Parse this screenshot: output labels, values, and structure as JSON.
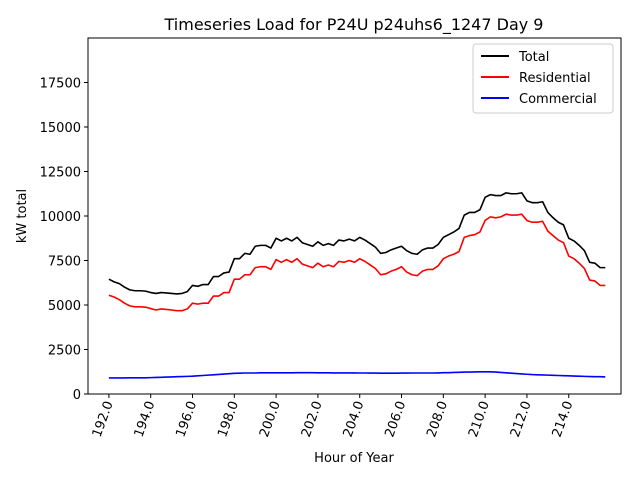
{
  "chart_data": {
    "type": "line",
    "title": "Timeseries Load for P24U p24uhs6_1247  Day 9",
    "xlabel": "Hour of Year",
    "ylabel": "kW total",
    "xlim": [
      191.0,
      216.5
    ],
    "ylim": [
      0,
      20000
    ],
    "xticks": [
      192,
      194,
      196,
      198,
      200,
      202,
      204,
      206,
      208,
      210,
      212,
      214
    ],
    "xtick_labels": [
      "192.0",
      "194.0",
      "196.0",
      "198.0",
      "200.0",
      "202.0",
      "204.0",
      "206.0",
      "208.0",
      "210.0",
      "212.0",
      "214.0"
    ],
    "yticks": [
      0,
      2500,
      5000,
      7500,
      10000,
      12500,
      15000,
      17500
    ],
    "ytick_labels": [
      "0",
      "2500",
      "5000",
      "7500",
      "10000",
      "12500",
      "15000",
      "17500"
    ],
    "legend_position": "top-right",
    "x": [
      192.0,
      192.25,
      192.5,
      192.75,
      193.0,
      193.25,
      193.5,
      193.75,
      194.0,
      194.25,
      194.5,
      194.75,
      195.0,
      195.25,
      195.5,
      195.75,
      196.0,
      196.25,
      196.5,
      196.75,
      197.0,
      197.25,
      197.5,
      197.75,
      198.0,
      198.25,
      198.5,
      198.75,
      199.0,
      199.25,
      199.5,
      199.75,
      200.0,
      200.25,
      200.5,
      200.75,
      201.0,
      201.25,
      201.5,
      201.75,
      202.0,
      202.25,
      202.5,
      202.75,
      203.0,
      203.25,
      203.5,
      203.75,
      204.0,
      204.25,
      204.5,
      204.75,
      205.0,
      205.25,
      205.5,
      205.75,
      206.0,
      206.25,
      206.5,
      206.75,
      207.0,
      207.25,
      207.5,
      207.75,
      208.0,
      208.25,
      208.5,
      208.75,
      209.0,
      209.25,
      209.5,
      209.75,
      210.0,
      210.25,
      210.5,
      210.75,
      211.0,
      211.25,
      211.5,
      211.75,
      212.0,
      212.25,
      212.5,
      212.75,
      213.0,
      213.25,
      213.5,
      213.75,
      214.0,
      214.25,
      214.5,
      214.75,
      215.0,
      215.25,
      215.5,
      215.75
    ],
    "series": [
      {
        "name": "Total",
        "color": "#000000",
        "values": [
          6450,
          6300,
          6200,
          6000,
          5850,
          5800,
          5800,
          5780,
          5700,
          5650,
          5700,
          5680,
          5650,
          5620,
          5650,
          5750,
          6100,
          6050,
          6150,
          6150,
          6600,
          6600,
          6800,
          6850,
          7600,
          7600,
          7900,
          7850,
          8300,
          8350,
          8350,
          8200,
          8750,
          8600,
          8750,
          8600,
          8800,
          8500,
          8400,
          8300,
          8550,
          8350,
          8450,
          8350,
          8650,
          8600,
          8700,
          8600,
          8800,
          8650,
          8450,
          8250,
          7900,
          7950,
          8100,
          8200,
          8300,
          8050,
          7900,
          7850,
          8100,
          8200,
          8200,
          8400,
          8800,
          8950,
          9100,
          9300,
          10050,
          10200,
          10200,
          10350,
          11050,
          11200,
          11150,
          11150,
          11300,
          11250,
          11250,
          11300,
          10850,
          10750,
          10750,
          10800,
          10200,
          9900,
          9650,
          9500,
          8750,
          8600,
          8350,
          8050,
          7400,
          7350,
          7100,
          7100
        ]
      },
      {
        "name": "Residential",
        "color": "#ff0000",
        "values": [
          5550,
          5450,
          5300,
          5100,
          4950,
          4900,
          4900,
          4880,
          4800,
          4720,
          4780,
          4750,
          4720,
          4680,
          4680,
          4780,
          5100,
          5050,
          5100,
          5100,
          5500,
          5500,
          5700,
          5700,
          6450,
          6450,
          6700,
          6700,
          7100,
          7150,
          7150,
          7000,
          7550,
          7400,
          7550,
          7400,
          7600,
          7300,
          7200,
          7100,
          7350,
          7150,
          7250,
          7150,
          7450,
          7400,
          7500,
          7400,
          7600,
          7450,
          7250,
          7050,
          6700,
          6750,
          6900,
          7000,
          7150,
          6850,
          6700,
          6650,
          6900,
          7000,
          7000,
          7200,
          7600,
          7750,
          7850,
          8000,
          8800,
          8900,
          8950,
          9100,
          9750,
          9950,
          9900,
          9950,
          10100,
          10050,
          10050,
          10100,
          9750,
          9650,
          9650,
          9700,
          9150,
          8900,
          8650,
          8500,
          7750,
          7600,
          7350,
          7050,
          6400,
          6350,
          6100,
          6100
        ]
      },
      {
        "name": "Commercial",
        "color": "#0000ff",
        "values": [
          900,
          900,
          900,
          900,
          910,
          910,
          910,
          910,
          920,
          930,
          940,
          950,
          960,
          970,
          980,
          990,
          1000,
          1020,
          1040,
          1060,
          1080,
          1100,
          1120,
          1140,
          1160,
          1170,
          1180,
          1180,
          1180,
          1190,
          1190,
          1190,
          1190,
          1190,
          1190,
          1190,
          1195,
          1195,
          1195,
          1195,
          1190,
          1190,
          1190,
          1185,
          1185,
          1185,
          1185,
          1185,
          1180,
          1180,
          1175,
          1175,
          1170,
          1170,
          1170,
          1170,
          1175,
          1175,
          1180,
          1180,
          1180,
          1180,
          1180,
          1185,
          1195,
          1200,
          1210,
          1220,
          1230,
          1235,
          1240,
          1245,
          1250,
          1245,
          1230,
          1210,
          1190,
          1170,
          1150,
          1130,
          1110,
          1090,
          1080,
          1070,
          1060,
          1050,
          1040,
          1030,
          1020,
          1010,
          1000,
          990,
          980,
          975,
          970,
          960
        ]
      }
    ]
  }
}
